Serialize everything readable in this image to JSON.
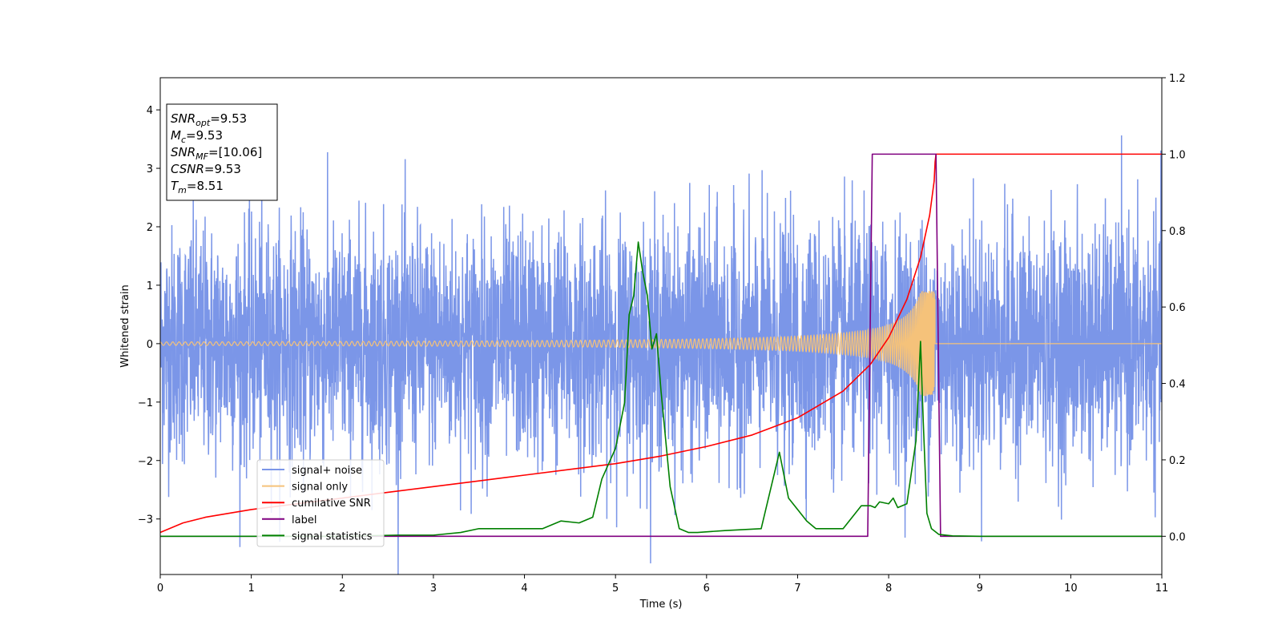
{
  "chart_data": {
    "type": "line",
    "xlabel": "Time (s)",
    "ylabel": "Whitened strain",
    "xlim": [
      0,
      11
    ],
    "ylim": [
      -3.95,
      4.55
    ],
    "ylim_right": [
      -0.1,
      1.2
    ],
    "x_ticks": [
      "0",
      "1",
      "2",
      "3",
      "4",
      "5",
      "6",
      "7",
      "8",
      "9",
      "10",
      "11"
    ],
    "y_ticks": [
      "4",
      "3",
      "2",
      "1",
      "0",
      "−1",
      "−2",
      "−3"
    ],
    "y_ticks_right": [
      "1.2",
      "1.0",
      "0.8",
      "0.6",
      "0.4",
      "0.2",
      "0.0"
    ],
    "grid": false,
    "legend_position": "lower-left",
    "annotation": {
      "lines": [
        {
          "sym": "SNR",
          "sub": "opt",
          "value": "=9.53"
        },
        {
          "sym": "M",
          "sub": "c",
          "value": "=9.53"
        },
        {
          "sym": "SNR",
          "sub": "MF",
          "value": "=[10.06]"
        },
        {
          "sym": "CSNR",
          "sub": "",
          "value": "=9.53"
        },
        {
          "sym": "T",
          "sub": "m",
          "value": "=8.51"
        }
      ]
    },
    "series": [
      {
        "name": "signal+ noise",
        "color": "#7b96e8",
        "axis": "left",
        "kind": "noise",
        "sigma": 1.0,
        "merger_time": 8.51
      },
      {
        "name": "signal only",
        "color": "#f5c27a",
        "axis": "left",
        "kind": "chirp",
        "start_amp": 0.03,
        "peak_amp": 0.9,
        "merger_time": 8.51
      },
      {
        "name": "cumilative SNR",
        "color": "#ff0000",
        "axis": "right",
        "x": [
          0,
          0.25,
          0.5,
          1,
          1.5,
          2,
          2.5,
          3,
          3.5,
          4,
          4.5,
          5,
          5.5,
          6,
          6.5,
          7,
          7.5,
          7.8,
          8.0,
          8.2,
          8.35,
          8.45,
          8.5,
          8.51,
          8.52,
          11
        ],
        "y": [
          0.01,
          0.035,
          0.05,
          0.07,
          0.085,
          0.1,
          0.115,
          0.13,
          0.145,
          0.16,
          0.175,
          0.19,
          0.21,
          0.235,
          0.265,
          0.31,
          0.38,
          0.45,
          0.52,
          0.62,
          0.73,
          0.84,
          0.93,
          0.98,
          1.0,
          1.0
        ]
      },
      {
        "name": "label",
        "color": "#800080",
        "axis": "right",
        "x": [
          0,
          7.77,
          7.82,
          8.52,
          8.57,
          11
        ],
        "y": [
          0.0,
          0.0,
          1.0,
          1.0,
          0.0,
          0.0
        ]
      },
      {
        "name": "signal statistics",
        "color": "#008000",
        "axis": "right",
        "x": [
          0,
          1,
          2,
          2.6,
          3.0,
          3.3,
          3.5,
          3.8,
          4.2,
          4.4,
          4.6,
          4.75,
          4.85,
          5.0,
          5.1,
          5.15,
          5.2,
          5.25,
          5.3,
          5.35,
          5.4,
          5.45,
          5.5,
          5.6,
          5.7,
          5.8,
          5.9,
          6.2,
          6.6,
          6.8,
          6.9,
          7.0,
          7.1,
          7.2,
          7.3,
          7.5,
          7.7,
          7.8,
          7.85,
          7.9,
          8.0,
          8.05,
          8.1,
          8.2,
          8.3,
          8.35,
          8.38,
          8.42,
          8.47,
          8.55,
          8.7,
          9,
          11
        ],
        "y": [
          0.0,
          0.0,
          0.0,
          0.003,
          0.003,
          0.01,
          0.02,
          0.02,
          0.02,
          0.04,
          0.035,
          0.05,
          0.15,
          0.23,
          0.35,
          0.58,
          0.63,
          0.77,
          0.69,
          0.63,
          0.49,
          0.53,
          0.38,
          0.13,
          0.02,
          0.01,
          0.01,
          0.015,
          0.02,
          0.22,
          0.1,
          0.07,
          0.04,
          0.02,
          0.02,
          0.02,
          0.08,
          0.08,
          0.075,
          0.09,
          0.085,
          0.1,
          0.075,
          0.085,
          0.25,
          0.51,
          0.3,
          0.06,
          0.02,
          0.005,
          0.001,
          0.0,
          0.0
        ]
      }
    ]
  }
}
